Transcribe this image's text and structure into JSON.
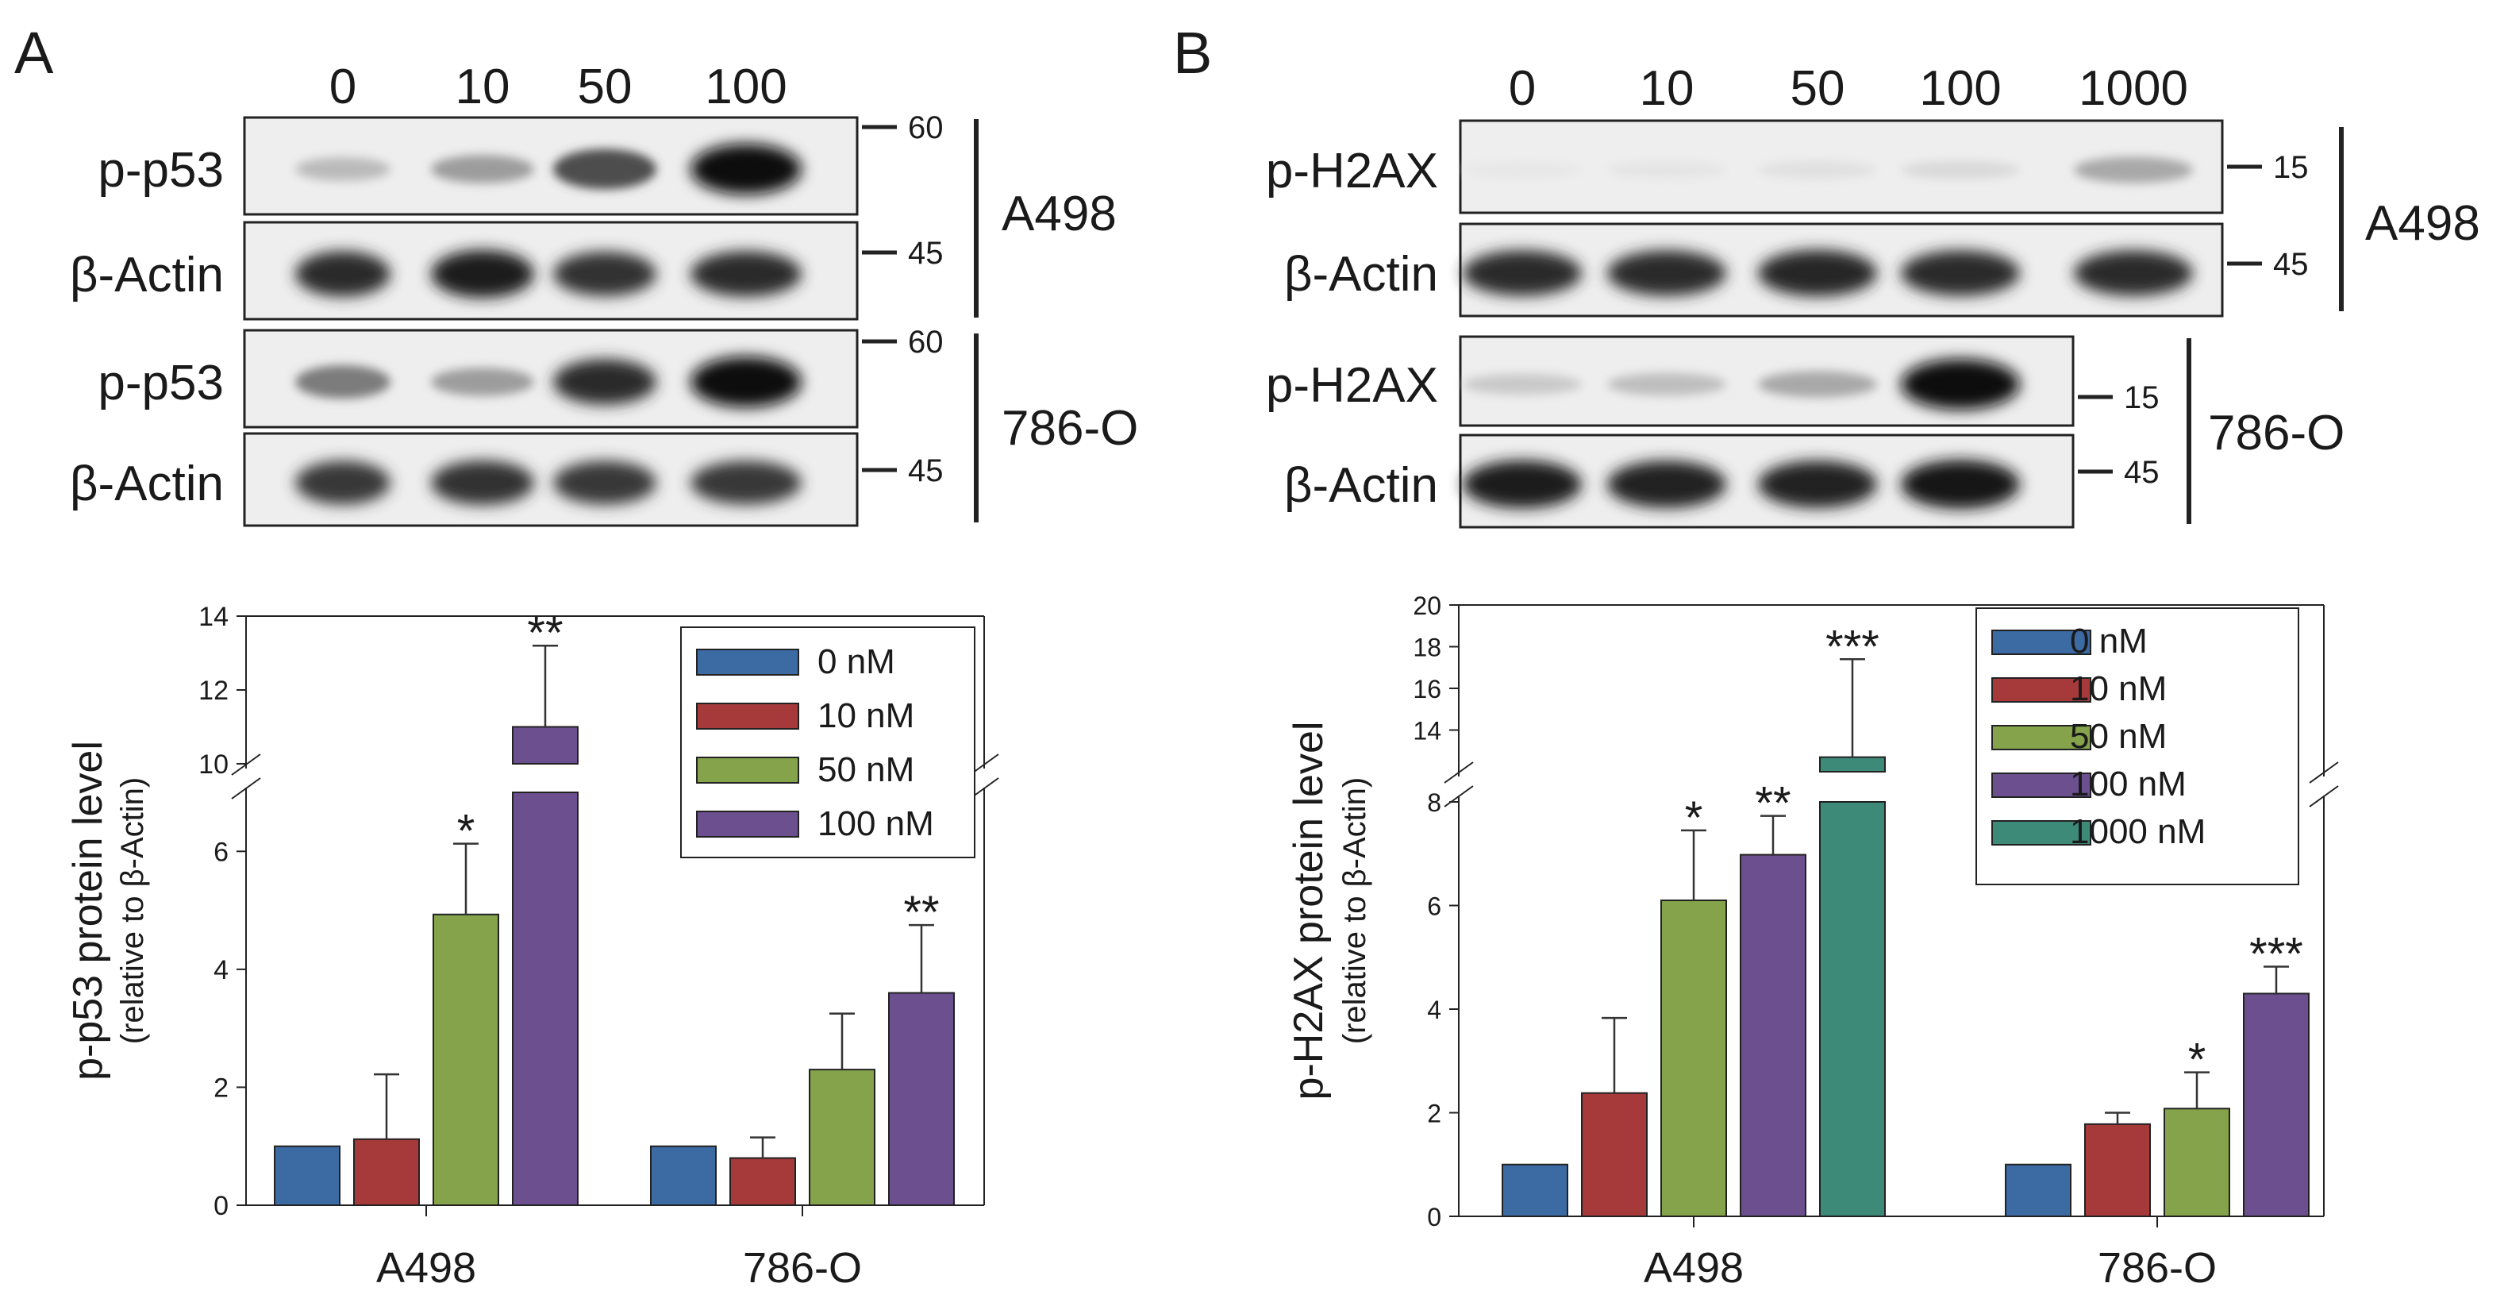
{
  "panels": [
    {
      "letter": "A",
      "lanes": [
        "0",
        "10",
        "50",
        "100"
      ],
      "blots": [
        {
          "label": "p-p53",
          "marker": "60",
          "group": 0,
          "intensities": [
            0.22,
            0.35,
            0.7,
            1.0
          ]
        },
        {
          "label": "β-Actin",
          "marker": "45",
          "group": 0,
          "intensities": [
            0.85,
            0.92,
            0.82,
            0.85
          ]
        },
        {
          "label": "p-p53",
          "marker": "60",
          "group": 1,
          "intensities": [
            0.5,
            0.35,
            0.85,
            1.0
          ]
        },
        {
          "label": "β-Actin",
          "marker": "45",
          "group": 1,
          "intensities": [
            0.8,
            0.82,
            0.8,
            0.8
          ]
        }
      ],
      "cell_lines": [
        "A498",
        "786-O"
      ]
    },
    {
      "letter": "B",
      "lanes": [
        "0",
        "10",
        "50",
        "100",
        "1000"
      ],
      "blots": [
        {
          "label": "p-H2AX",
          "marker": "15",
          "group": 0,
          "intensities": [
            0.02,
            0.03,
            0.05,
            0.08,
            0.3
          ]
        },
        {
          "label": "β-Actin",
          "marker": "45",
          "group": 0,
          "intensities": [
            0.85,
            0.85,
            0.88,
            0.85,
            0.85
          ]
        },
        {
          "label": "p-H2AX",
          "marker": "15",
          "group": 1,
          "intensities": [
            0.15,
            0.2,
            0.3,
            1.0
          ]
        },
        {
          "label": "β-Actin",
          "marker": "45",
          "group": 1,
          "intensities": [
            0.92,
            0.9,
            0.9,
            0.95
          ]
        }
      ],
      "cell_lines": [
        "A498",
        "786-O"
      ]
    }
  ],
  "chart_data": [
    {
      "type": "bar",
      "ylabel": "p-p53 protein level",
      "ylabel2": "(relative to β-Actin)",
      "categories": [
        "A498",
        "786-O"
      ],
      "series": [
        {
          "name": "0 nM",
          "color": "#3c6aa3",
          "values": [
            1.0,
            1.0
          ],
          "errors": [
            0,
            0
          ],
          "sig": [
            "",
            ""
          ]
        },
        {
          "name": "10 nM",
          "color": "#a63a3a",
          "values": [
            1.12,
            0.8
          ],
          "errors": [
            1.1,
            0.35
          ],
          "sig": [
            "",
            ""
          ]
        },
        {
          "name": "50 nM",
          "color": "#84a34a",
          "values": [
            4.93,
            2.3
          ],
          "errors": [
            1.2,
            0.95
          ],
          "sig": [
            "*",
            ""
          ]
        },
        {
          "name": "100 nM",
          "color": "#6b4f8e",
          "values": [
            11.0,
            3.6
          ],
          "errors": [
            2.2,
            1.15
          ],
          "sig": [
            "**",
            "**"
          ]
        }
      ],
      "axis_break": {
        "lower": [
          0,
          7
        ],
        "upper": [
          10,
          14
        ]
      },
      "lower_ticks": [
        0,
        2,
        4,
        6
      ],
      "upper_ticks": [
        10,
        12,
        14
      ],
      "legend": "top-right"
    },
    {
      "type": "bar",
      "ylabel": "p-H2AX protein level",
      "ylabel2": "(relative to β-Actin)",
      "categories": [
        "A498",
        "786-O"
      ],
      "series": [
        {
          "name": "0 nM",
          "color": "#3c6aa3",
          "values": [
            1.0,
            1.0
          ],
          "errors": [
            0,
            0
          ],
          "sig": [
            "",
            ""
          ]
        },
        {
          "name": "10 nM",
          "color": "#a63a3a",
          "values": [
            2.38,
            1.78
          ],
          "errors": [
            1.45,
            0.22
          ],
          "sig": [
            "",
            ""
          ]
        },
        {
          "name": "50 nM",
          "color": "#84a34a",
          "values": [
            6.1,
            2.08
          ],
          "errors": [
            1.35,
            0.7
          ],
          "sig": [
            "*",
            "*"
          ]
        },
        {
          "name": "100 nM",
          "color": "#6b4f8e",
          "values": [
            6.98,
            4.3
          ],
          "errors": [
            0.75,
            0.52
          ],
          "sig": [
            "**",
            "***"
          ]
        },
        {
          "name": "1000 nM",
          "color": "#3e8a78",
          "values": [
            12.7,
            null
          ],
          "errors": [
            4.7,
            null
          ],
          "sig": [
            "***",
            ""
          ]
        }
      ],
      "axis_break": {
        "lower": [
          0,
          8
        ],
        "upper": [
          12,
          20
        ]
      },
      "lower_ticks": [
        0,
        2,
        4,
        6,
        8
      ],
      "upper_ticks": [
        14,
        16,
        18,
        20
      ],
      "legend": "top-right"
    }
  ]
}
